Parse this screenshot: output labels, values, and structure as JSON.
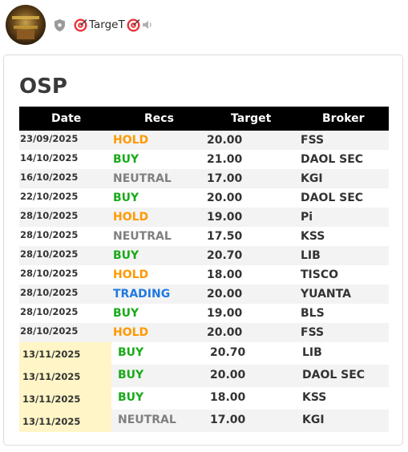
{
  "header": {
    "username": "TargeT",
    "icons": [
      "avatar",
      "shield-icon",
      "target-emoji-icon",
      "speaker-icon"
    ]
  },
  "colors": {
    "hold": "#ff9900",
    "buy": "#1aaa1a",
    "neutral": "#808080",
    "trading": "#1f7ae0",
    "header_bg": "#000000",
    "date_highlight": "#fff5c6"
  },
  "table": {
    "title": "OSP",
    "columns": [
      "Date",
      "Recs",
      "Target",
      "Broker"
    ],
    "rows": [
      {
        "date": "23/09/2025",
        "rec": "HOLD",
        "target": "20.00",
        "broker": "FSS"
      },
      {
        "date": "14/10/2025",
        "rec": "BUY",
        "target": "21.00",
        "broker": "DAOL SEC"
      },
      {
        "date": "16/10/2025",
        "rec": "NEUTRAL",
        "target": "17.00",
        "broker": "KGI"
      },
      {
        "date": "22/10/2025",
        "rec": "BUY",
        "target": "20.00",
        "broker": "DAOL SEC"
      },
      {
        "date": "28/10/2025",
        "rec": "HOLD",
        "target": "19.00",
        "broker": "Pi"
      },
      {
        "date": "28/10/2025",
        "rec": "NEUTRAL",
        "target": "17.50",
        "broker": "KSS"
      },
      {
        "date": "28/10/2025",
        "rec": "BUY",
        "target": "20.70",
        "broker": "LIB"
      },
      {
        "date": "28/10/2025",
        "rec": "HOLD",
        "target": "18.00",
        "broker": "TISCO"
      },
      {
        "date": "28/10/2025",
        "rec": "TRADING",
        "target": "20.00",
        "broker": "YUANTA"
      },
      {
        "date": "28/10/2025",
        "rec": "BUY",
        "target": "19.00",
        "broker": "BLS"
      },
      {
        "date": "28/10/2025",
        "rec": "HOLD",
        "target": "20.00",
        "broker": "FSS"
      }
    ],
    "new_rows": [
      {
        "date": "13/11/2025",
        "rec": "BUY",
        "target": "20.70",
        "broker": "LIB"
      },
      {
        "date": "13/11/2025",
        "rec": "BUY",
        "target": "20.00",
        "broker": "DAOL SEC"
      },
      {
        "date": "13/11/2025",
        "rec": "BUY",
        "target": "18.00",
        "broker": "KSS"
      },
      {
        "date": "13/11/2025",
        "rec": "NEUTRAL",
        "target": "17.00",
        "broker": "KGI"
      }
    ]
  }
}
